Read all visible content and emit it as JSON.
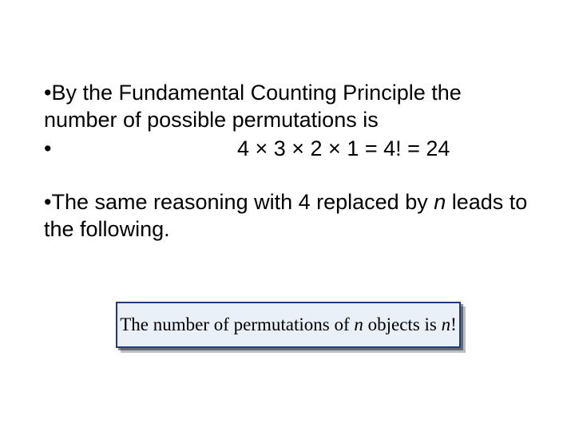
{
  "slide": {
    "background_color": "#ffffff",
    "text_color": "#000000",
    "body_fontsize": 27,
    "body_font": "Arial",
    "lines": {
      "l1": "•By the Fundamental Counting Principle the number of possible permutations is",
      "l2_bullet": "•",
      "l2_formula": "4 × 3 × 2 × 1 = 4! = 24",
      "l3a": "•The same reasoning with 4 replaced by ",
      "l3_n": "n",
      "l3b": " leads to the following."
    },
    "box": {
      "border_color": "#1f3b7a",
      "fill_color": "#eaf0f8",
      "font": "Times New Roman",
      "fontsize": 23,
      "text_prefix": "The number of permutations of ",
      "text_n1": "n",
      "text_mid": " objects is ",
      "text_n2": "n",
      "text_suffix": "!",
      "shadow": true
    }
  }
}
